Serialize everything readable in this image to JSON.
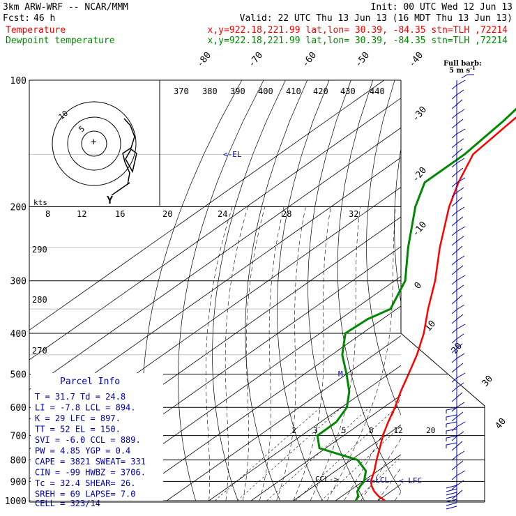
{
  "header": {
    "model": "3km ARW-WRF -- NCAR/MMM",
    "init": "Init: 00 UTC Wed 12 Jun 13",
    "fcst_label": "Fcst:",
    "fcst_value": "46 h",
    "valid": "Valid: 22 UTC Thu 13 Jun 13 (16 MDT Thu 13 Jun 13)",
    "temp_label": "Temperature",
    "temp_info": "x,y=922.18,221.99   lat,lon= 30.39, -84.35  stn=TLH ,72214",
    "dew_label": "Dewpoint temperature",
    "dew_info": "x,y=922.18,221.99   lat,lon= 30.39, -84.35  stn=TLH ,72214"
  },
  "hodograph": {
    "units": "kts",
    "ring_labels": [
      "5",
      "10"
    ],
    "speed_ticks": [
      "8",
      "12",
      "16",
      "20",
      "24",
      "28",
      "32"
    ]
  },
  "barbs": {
    "label_line1": "Full barb:",
    "label_line2": "5 m s"
  },
  "annotations": {
    "el": "EL",
    "ccl": "CCL",
    "lcl": "LCL",
    "lfc": "LFC",
    "m": "M"
  },
  "parcel_info": {
    "title": "Parcel Info",
    "rows": [
      [
        "T",
        "31.7",
        "Td",
        "24.8"
      ],
      [
        "LI",
        "-7.8",
        "LCL",
        "894."
      ],
      [
        "K",
        "29",
        "LFC",
        "897."
      ],
      [
        "TT",
        "52",
        "EL",
        "150."
      ],
      [
        "SVI",
        "-6.0",
        "CCL",
        "889."
      ],
      [
        "PW",
        "4.85",
        "YGP",
        "0.4"
      ],
      [
        "CAPE",
        "3821",
        "SWEAT",
        "331"
      ],
      [
        "CIN",
        "-99",
        "HWBZ",
        "3706."
      ],
      [
        "Tc",
        "32.4",
        "SHEAR",
        "26."
      ],
      [
        "SREH",
        "69",
        "LAPSE",
        "7.0"
      ]
    ],
    "cell": "CELL = 323/14"
  },
  "colors": {
    "temperature": "#ff0000",
    "dewpoint": "#008800",
    "barbs": "#0000aa"
  },
  "chart_data": {
    "type": "line",
    "pressure_levels": [
      100,
      200,
      300,
      400,
      500,
      600,
      700,
      800,
      900,
      1000
    ],
    "pressure_labels": [
      "100",
      "200",
      "300",
      "400",
      "500",
      "600",
      "700",
      "800",
      "900",
      "1000"
    ],
    "temperature_ticks": [
      "-80",
      "-70",
      "-60",
      "-50",
      "-40",
      "-30",
      "-20",
      "-10",
      "0",
      "10",
      "20",
      "30",
      "40"
    ],
    "theta_labels": [
      "370",
      "380",
      "390",
      "400",
      "410",
      "420",
      "430",
      "440",
      "290",
      "280",
      "270"
    ],
    "mixing_ratio_labels": [
      "2",
      "3",
      "5",
      "8",
      "12",
      "20"
    ],
    "series": [
      {
        "name": "Temperature",
        "unit": "C",
        "p": [
          1000,
          975,
          950,
          925,
          900,
          850,
          800,
          750,
          700,
          650,
          600,
          550,
          500,
          450,
          400,
          350,
          300,
          250,
          200,
          175,
          150,
          125,
          100
        ],
        "values": [
          31.7,
          28.6,
          26.0,
          23.8,
          21.9,
          19.2,
          16.0,
          12.8,
          9.3,
          6.0,
          2.7,
          -1.3,
          -5.3,
          -9.8,
          -15.4,
          -22.6,
          -30.4,
          -40.5,
          -52.0,
          -58.0,
          -64.0,
          -66.0,
          -68.0
        ]
      },
      {
        "name": "Dewpoint temperature",
        "unit": "C",
        "p": [
          1000,
          975,
          950,
          925,
          900,
          850,
          800,
          750,
          700,
          650,
          600,
          550,
          500,
          450,
          400,
          370,
          350,
          300,
          250,
          200,
          175,
          150,
          125,
          110,
          100
        ],
        "values": [
          24.8,
          23.8,
          22.0,
          21.0,
          20.3,
          17.2,
          11.5,
          -1.5,
          -6.2,
          -6.3,
          -8.7,
          -13.5,
          -20.0,
          -27.5,
          -34.0,
          -33.5,
          -31.5,
          -37.5,
          -48.0,
          -60.0,
          -66.0,
          -66.0,
          -68.0,
          -70.0,
          -74.0
        ]
      }
    ]
  }
}
